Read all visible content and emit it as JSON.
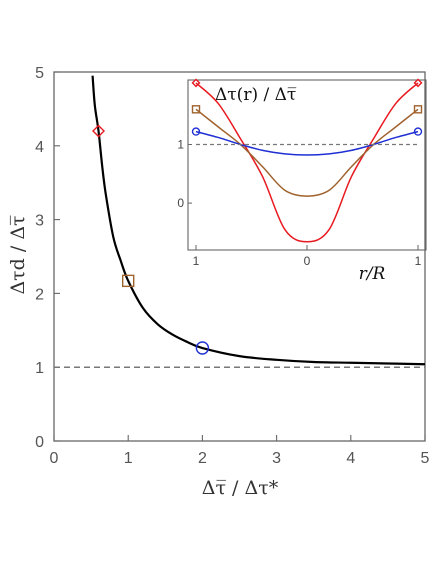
{
  "chart_data": [
    {
      "type": "line",
      "xlabel": "Δτ̅ / Δτ*",
      "ylabel": "Δτd / Δτ̅",
      "xlim": [
        0,
        5
      ],
      "ylim": [
        0,
        5
      ],
      "xticks": [
        "0",
        "1",
        "2",
        "3",
        "4",
        "5"
      ],
      "yticks": [
        "0",
        "1",
        "2",
        "3",
        "4",
        "5"
      ],
      "grid": false,
      "series": [
        {
          "style": "solid",
          "color": "#000000",
          "x": [
            0.52,
            0.55,
            0.6,
            0.65,
            0.7,
            0.8,
            0.9,
            1.0,
            1.2,
            1.4,
            1.6,
            1.8,
            2.0,
            2.5,
            3.0,
            3.5,
            4.0,
            4.5,
            5.0
          ],
          "y": [
            4.95,
            4.55,
            4.2,
            3.72,
            3.33,
            2.76,
            2.44,
            2.17,
            1.8,
            1.58,
            1.44,
            1.34,
            1.26,
            1.15,
            1.1,
            1.07,
            1.06,
            1.05,
            1.04
          ]
        },
        {
          "style": "dashed",
          "color": "#777777",
          "x": [
            0,
            5
          ],
          "y": [
            1,
            1
          ]
        }
      ],
      "markers": [
        {
          "shape": "diamond",
          "color": "#e8191f",
          "x": 0.6,
          "y": 4.2
        },
        {
          "shape": "square",
          "color": "#a0622d",
          "x": 1.0,
          "y": 2.17
        },
        {
          "shape": "circle",
          "color": "#1f2fd4",
          "x": 2.0,
          "y": 1.26
        }
      ]
    },
    {
      "type": "line",
      "title": "Δτ(r) / Δτ̅",
      "xlabel": "r/R",
      "xlim": [
        -1,
        1
      ],
      "ylim": [
        -0.8,
        2.1
      ],
      "xticks": [
        "1",
        "0",
        "1"
      ],
      "yticks": [
        "0",
        "1"
      ],
      "series": [
        {
          "color": "#e8191f",
          "marker": "diamond",
          "x": [
            -1,
            -0.8,
            -0.6,
            -0.4,
            -0.2,
            0,
            0.2,
            0.4,
            0.6,
            0.8,
            1
          ],
          "y": [
            2.05,
            1.7,
            1.1,
            0.45,
            -0.45,
            -0.66,
            -0.45,
            0.45,
            1.1,
            1.7,
            2.05
          ]
        },
        {
          "color": "#a0622d",
          "marker": "square",
          "x": [
            -1,
            -0.8,
            -0.6,
            -0.4,
            -0.2,
            0,
            0.2,
            0.4,
            0.6,
            0.8,
            1
          ],
          "y": [
            1.6,
            1.3,
            1.0,
            0.62,
            0.22,
            0.12,
            0.22,
            0.62,
            1.0,
            1.3,
            1.6
          ]
        },
        {
          "color": "#1f2fd4",
          "marker": "circle",
          "x": [
            -1,
            -0.8,
            -0.6,
            -0.4,
            -0.2,
            0,
            0.2,
            0.4,
            0.6,
            0.8,
            1
          ],
          "y": [
            1.22,
            1.12,
            1.0,
            0.9,
            0.84,
            0.82,
            0.84,
            0.9,
            1.0,
            1.12,
            1.22
          ]
        },
        {
          "style": "dashed",
          "color": "#777777",
          "x": [
            -1,
            1
          ],
          "y": [
            1,
            1
          ]
        }
      ]
    }
  ]
}
